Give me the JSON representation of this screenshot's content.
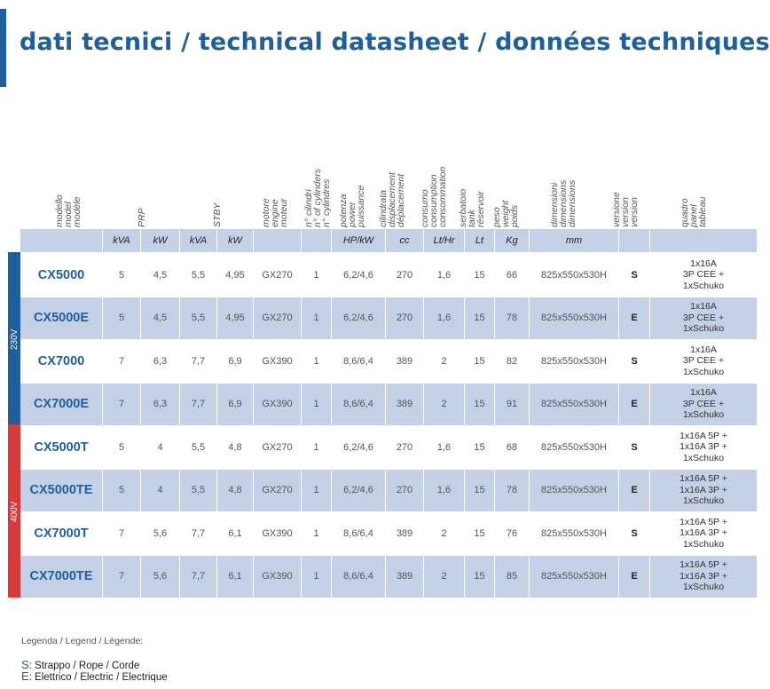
{
  "title": "dati tecnici / technical datasheet / données techniques",
  "headers": [
    [
      "modello",
      "model",
      "modèle"
    ],
    [
      "PRP"
    ],
    [
      "STBY"
    ],
    [
      "motore",
      "engine",
      "moteur"
    ],
    [
      "n° cilindri",
      "n° of cylinders",
      "n° cylindres"
    ],
    [
      "potenza",
      "power",
      "puissance"
    ],
    [
      "cilindrata",
      "displacement",
      "déplacement"
    ],
    [
      "consumo",
      "consumption",
      "consommation"
    ],
    [
      "serbatoio",
      "tank",
      "réservoir"
    ],
    [
      "peso",
      "weight",
      "poids"
    ],
    [
      "dimensioni",
      "dimensions",
      "dimensions"
    ],
    [
      "versione",
      "version",
      "version"
    ],
    [
      "quadro",
      "panel",
      "tableau"
    ]
  ],
  "units": [
    "",
    "kVA",
    "kW",
    "kVA",
    "kW",
    "",
    "",
    "HP/kW",
    "cc",
    "Lt/Hr",
    "Lt",
    "Kg",
    "mm",
    "",
    ""
  ],
  "voltage_groups": [
    {
      "label": "230V",
      "color": "#1f5f9e"
    },
    {
      "label": "400V",
      "color": "#d63a3a"
    }
  ],
  "rows": [
    {
      "cells": [
        "CX5000",
        "5",
        "4,5",
        "5,5",
        "4,95",
        "GX270",
        "1",
        "6,2/4,6",
        "270",
        "1,6",
        "15",
        "66",
        "825x550x530H",
        "S"
      ],
      "panel": [
        "1x16A",
        "3P CEE +",
        "1xSchuko"
      ]
    },
    {
      "cells": [
        "CX5000E",
        "5",
        "4,5",
        "5,5",
        "4,95",
        "GX270",
        "1",
        "6,2/4,6",
        "270",
        "1,6",
        "15",
        "78",
        "825x550x530H",
        "E"
      ],
      "panel": [
        "1x16A",
        "3P CEE +",
        "1xSchuko"
      ]
    },
    {
      "cells": [
        "CX7000",
        "7",
        "6,3",
        "7,7",
        "6,9",
        "GX390",
        "1",
        "8,6/6,4",
        "389",
        "2",
        "15",
        "82",
        "825x550x530H",
        "S"
      ],
      "panel": [
        "1x16A",
        "3P CEE +",
        "1xSchuko"
      ]
    },
    {
      "cells": [
        "CX7000E",
        "7",
        "6,3",
        "7,7",
        "6,9",
        "GX390",
        "1",
        "8,6/6,4",
        "389",
        "2",
        "15",
        "91",
        "825x550x530H",
        "E"
      ],
      "panel": [
        "1x16A",
        "3P CEE +",
        "1xSchuko"
      ]
    },
    {
      "cells": [
        "CX5000T",
        "5",
        "4",
        "5,5",
        "4,8",
        "GX270",
        "1",
        "6,2/4,6",
        "270",
        "1,6",
        "15",
        "68",
        "825x550x530H",
        "S"
      ],
      "panel": [
        "1x16A 5P +",
        "1x16A 3P +",
        "1xSchuko"
      ]
    },
    {
      "cells": [
        "CX5000TE",
        "5",
        "4",
        "5,5",
        "4,8",
        "GX270",
        "1",
        "6,2/4,6",
        "270",
        "1,6",
        "15",
        "78",
        "825x550x530H",
        "E"
      ],
      "panel": [
        "1x16A 5P +",
        "1x16A 3P +",
        "1xSchuko"
      ]
    },
    {
      "cells": [
        "CX7000T",
        "7",
        "5,6",
        "7,7",
        "6,1",
        "GX390",
        "1",
        "8,6/6,4",
        "389",
        "2",
        "15",
        "76",
        "825x550x530H",
        "S"
      ],
      "panel": [
        "1x16A 5P +",
        "1x16A 3P +",
        "1xSchuko"
      ]
    },
    {
      "cells": [
        "CX7000TE",
        "7",
        "5,6",
        "7,7",
        "6,1",
        "GX390",
        "1",
        "8,6/6,4",
        "389",
        "2",
        "15",
        "85",
        "825x550x530H",
        "E"
      ],
      "panel": [
        "1x16A 5P +",
        "1x16A 3P +",
        "1xSchuko"
      ]
    }
  ],
  "legend": {
    "title": "Legenda / Legend / Légende:",
    "items": [
      {
        "key": "S",
        "text": ": Strappo / Rope / Corde"
      },
      {
        "key": "E",
        "text": ": Elettrico / Electric / Electrique"
      }
    ]
  }
}
